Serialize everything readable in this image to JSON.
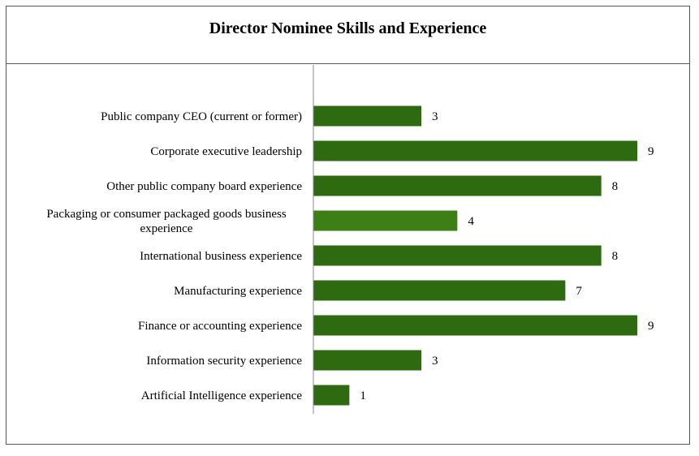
{
  "chart_data": {
    "type": "bar",
    "orientation": "horizontal",
    "title": "Director Nominee Skills and Experience",
    "xlabel": "",
    "ylabel": "",
    "xlim": [
      0,
      9
    ],
    "grid": false,
    "legend": "none",
    "categories": [
      [
        "Public company CEO (current or former)"
      ],
      [
        "Corporate executive leadership"
      ],
      [
        "Other public company board experience"
      ],
      [
        "Packaging or consumer packaged goods business",
        "experience"
      ],
      [
        "International business experience"
      ],
      [
        "Manufacturing experience"
      ],
      [
        "Finance or accounting experience"
      ],
      [
        "Information security experience"
      ],
      [
        "Artificial Intelligence experience"
      ]
    ],
    "values": [
      3,
      9,
      8,
      4,
      8,
      7,
      9,
      3,
      1
    ],
    "colors": {
      "bar": "#2e6b10",
      "bar_highlight": "#3d7f17",
      "axis": "#888888"
    },
    "highlight_index": 3
  }
}
